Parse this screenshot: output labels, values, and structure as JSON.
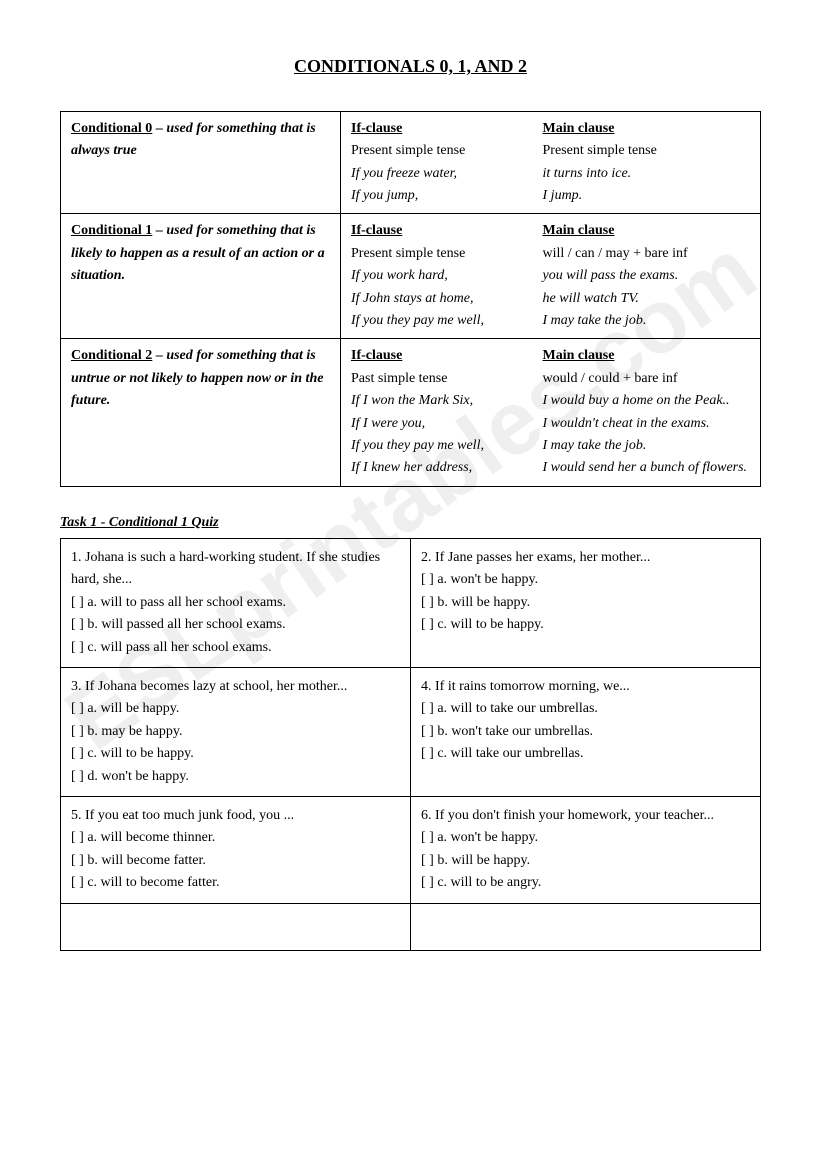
{
  "watermark": "ESLprintables.com",
  "title": "CONDITIONALS 0, 1, AND 2",
  "grammar_table": [
    {
      "label": "Conditional 0",
      "desc": " – used for something that is always true",
      "if_header": "If-clause",
      "main_header": "Main clause",
      "rows": [
        {
          "if": "Present simple tense",
          "main": "Present simple tense",
          "italic": false
        },
        {
          "if": "If you freeze water,",
          "main": "it turns into ice.",
          "italic": true
        },
        {
          "if": "If you jump,",
          "main": "I jump.",
          "italic": true
        }
      ]
    },
    {
      "label": "Conditional 1",
      "desc": " – used for something that is likely to happen as a result of an action or a situation.",
      "if_header": "If-clause",
      "main_header": "Main clause",
      "rows": [
        {
          "if": "Present simple tense",
          "main": "will / can / may + bare inf",
          "italic": false
        },
        {
          "if": "If you work hard,",
          "main": "you will pass the exams.",
          "italic": true
        },
        {
          "if": "If John stays at home,",
          "main": "he will watch TV.",
          "italic": true
        },
        {
          "if": "If you they pay me well,",
          "main": "I may take the job.",
          "italic": true
        }
      ]
    },
    {
      "label": "Conditional 2",
      "desc": " – used for something that is untrue or not likely to happen now or in the future.",
      "if_header": "If-clause",
      "main_header": "Main clause",
      "rows": [
        {
          "if": "Past simple tense",
          "main": "would / could + bare inf",
          "italic": false
        },
        {
          "if": "If I won the Mark Six,",
          "main": "I would buy a home on the Peak..",
          "italic": true
        },
        {
          "if": "If I were you,",
          "main": "I wouldn't cheat in the exams.",
          "italic": true
        },
        {
          "if": "If you they pay me well,",
          "main": "I may take the job.",
          "italic": true
        },
        {
          "if": "If I knew her address,",
          "main": "I would send her a bunch of flowers.",
          "italic": true
        }
      ]
    }
  ],
  "task_title": "Task 1 - Conditional 1 Quiz",
  "quiz": [
    {
      "left": {
        "q": "1. Johana is such a hard-working student. If she studies hard, she...",
        "opts": [
          "[ ] a. will to pass all her school exams.",
          "[ ] b. will passed all her school exams.",
          "[ ] c. will pass all her school exams."
        ]
      },
      "right": {
        "q": "2. If Jane passes her exams, her mother...",
        "opts": [
          "[ ] a. won't be happy.",
          "[ ] b. will be happy.",
          "[ ] c. will to be happy."
        ]
      }
    },
    {
      "left": {
        "q": "3. If Johana becomes lazy at school, her mother...",
        "opts": [
          "[ ] a. will be happy.",
          "[ ] b. may be happy.",
          "[ ] c. will to be happy.",
          "[ ] d. won't be happy."
        ]
      },
      "right": {
        "q": "4. If it rains tomorrow morning, we...",
        "opts": [
          "[ ] a. will to take our umbrellas.",
          "[ ] b. won't take our umbrellas.",
          "[ ] c. will take our umbrellas."
        ]
      }
    },
    {
      "left": {
        "q": "5. If you eat too much junk food, you ...",
        "opts": [
          "[ ] a. will become thinner.",
          "[ ] b. will become fatter.",
          "[ ] c. will to become fatter."
        ]
      },
      "right": {
        "q": "6. If you don't finish your homework, your teacher...",
        "opts": [
          "[ ] a. won't be happy.",
          "[ ] b. will be happy.",
          "[ ] c. will to be angry."
        ]
      }
    }
  ]
}
